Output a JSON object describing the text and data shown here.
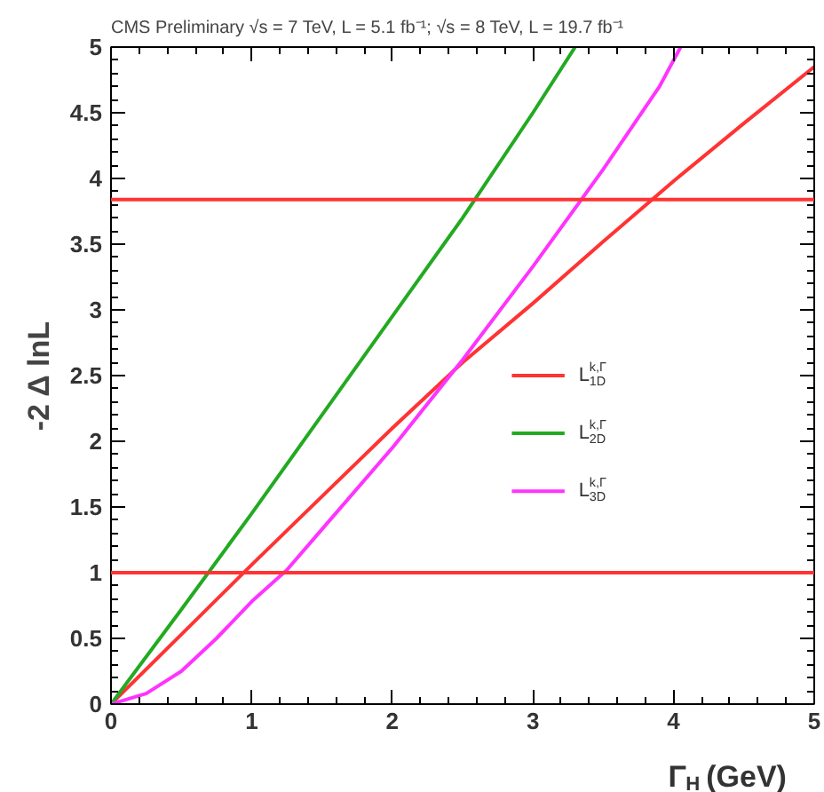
{
  "chart_data": {
    "type": "line",
    "title": "CMS Preliminary   √s = 7 TeV, L = 5.1 fb⁻¹; √s = 8 TeV, L = 19.7 fb⁻¹",
    "xlabel": "Γ$_{H}$ (GeV)",
    "ylabel": "-2 Δ lnL",
    "series": [
      {
        "name": "L$_{1D}$$^{k,Γ}$",
        "color": "#ff3333",
        "x": [
          0,
          0.5,
          1,
          1.5,
          2,
          2.5,
          3,
          3.5,
          4,
          4.5,
          5
        ],
        "values": [
          0,
          0.53,
          1.06,
          1.58,
          2.1,
          2.6,
          3.05,
          3.52,
          3.98,
          4.42,
          4.85
        ]
      },
      {
        "name": "L$_{2D}$$^{k,Γ}$",
        "color": "#22aa22",
        "x": [
          0,
          0.5,
          1,
          1.5,
          2,
          2.5,
          3,
          3.3
        ],
        "values": [
          0,
          0.72,
          1.45,
          2.2,
          2.95,
          3.7,
          4.5,
          5
        ]
      },
      {
        "name": "L$_{3D}$$^{k,Γ}$",
        "color": "#ff33ff",
        "x": [
          0,
          0.25,
          0.5,
          0.75,
          1,
          1.25,
          1.5,
          2,
          2.5,
          3,
          3.5,
          3.9,
          4.05
        ],
        "values": [
          0,
          0.08,
          0.25,
          0.5,
          0.78,
          1.02,
          1.33,
          1.95,
          2.62,
          3.33,
          4.07,
          4.7,
          5
        ]
      }
    ],
    "ref_lines": [
      {
        "axis": "y",
        "value": 1,
        "color": "#ff3333"
      },
      {
        "axis": "y",
        "value": 3.84,
        "color": "#ff3333"
      }
    ],
    "xlim": [
      0,
      5
    ],
    "ylim": [
      0,
      5
    ],
    "xticks": [
      0,
      1,
      2,
      3,
      4,
      5
    ],
    "yticks": [
      0,
      0.5,
      1,
      1.5,
      2,
      2.5,
      3,
      3.5,
      4,
      4.5,
      5
    ],
    "grid": false,
    "legend": "right",
    "marker": "none",
    "line_style": "solid"
  }
}
